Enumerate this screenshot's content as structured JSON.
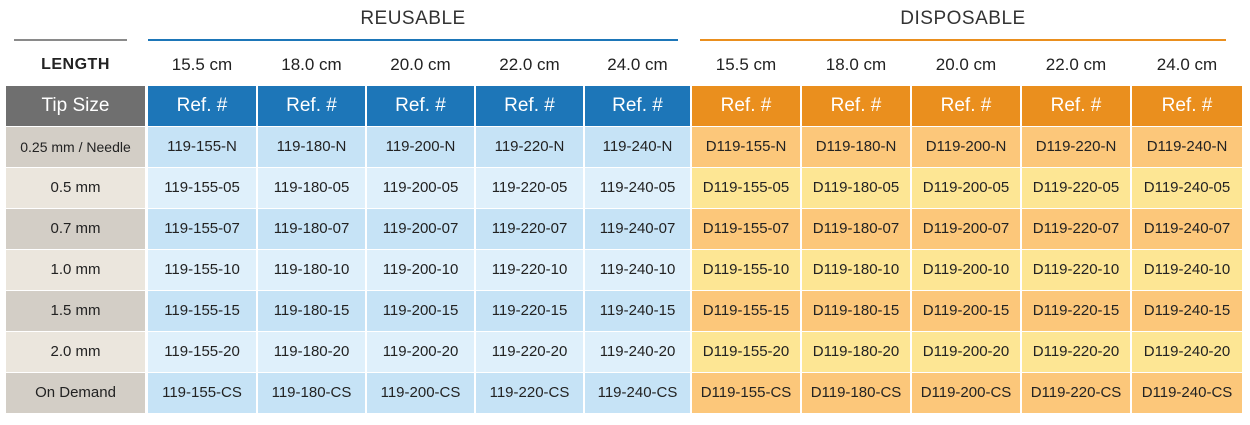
{
  "groups": {
    "reusable": {
      "title": "REUSABLE",
      "color": "#1d76b8"
    },
    "disposable": {
      "title": "DISPOSABLE",
      "color": "#ea8f1e"
    }
  },
  "length_label": "LENGTH",
  "lengths": [
    "15.5 cm",
    "18.0 cm",
    "20.0 cm",
    "22.0 cm",
    "24.0 cm",
    "15.5 cm",
    "18.0 cm",
    "20.0 cm",
    "22.0 cm",
    "24.0 cm"
  ],
  "header": {
    "tip_size": "Tip Size",
    "ref_label": "Ref. #"
  },
  "rows": [
    {
      "tip": "0.25 mm / Needle",
      "refs": [
        "119-155-N",
        "119-180-N",
        "119-200-N",
        "119-220-N",
        "119-240-N",
        "D119-155-N",
        "D119-180-N",
        "D119-200-N",
        "D119-220-N",
        "D119-240-N"
      ]
    },
    {
      "tip": "0.5 mm",
      "refs": [
        "119-155-05",
        "119-180-05",
        "119-200-05",
        "119-220-05",
        "119-240-05",
        "D119-155-05",
        "D119-180-05",
        "D119-200-05",
        "D119-220-05",
        "D119-240-05"
      ]
    },
    {
      "tip": "0.7 mm",
      "refs": [
        "119-155-07",
        "119-180-07",
        "119-200-07",
        "119-220-07",
        "119-240-07",
        "D119-155-07",
        "D119-180-07",
        "D119-200-07",
        "D119-220-07",
        "D119-240-07"
      ]
    },
    {
      "tip": "1.0 mm",
      "refs": [
        "119-155-10",
        "119-180-10",
        "119-200-10",
        "119-220-10",
        "119-240-10",
        "D119-155-10",
        "D119-180-10",
        "D119-200-10",
        "D119-220-10",
        "D119-240-10"
      ]
    },
    {
      "tip": "1.5 mm",
      "refs": [
        "119-155-15",
        "119-180-15",
        "119-200-15",
        "119-220-15",
        "119-240-15",
        "D119-155-15",
        "D119-180-15",
        "D119-200-15",
        "D119-220-15",
        "D119-240-15"
      ]
    },
    {
      "tip": "2.0 mm",
      "refs": [
        "119-155-20",
        "119-180-20",
        "119-200-20",
        "119-220-20",
        "119-240-20",
        "D119-155-20",
        "D119-180-20",
        "D119-200-20",
        "D119-220-20",
        "D119-240-20"
      ]
    },
    {
      "tip": "On Demand",
      "refs": [
        "119-155-CS",
        "119-180-CS",
        "119-200-CS",
        "119-220-CS",
        "119-240-CS",
        "D119-155-CS",
        "D119-180-CS",
        "D119-200-CS",
        "D119-220-CS",
        "D119-240-CS"
      ]
    }
  ]
}
